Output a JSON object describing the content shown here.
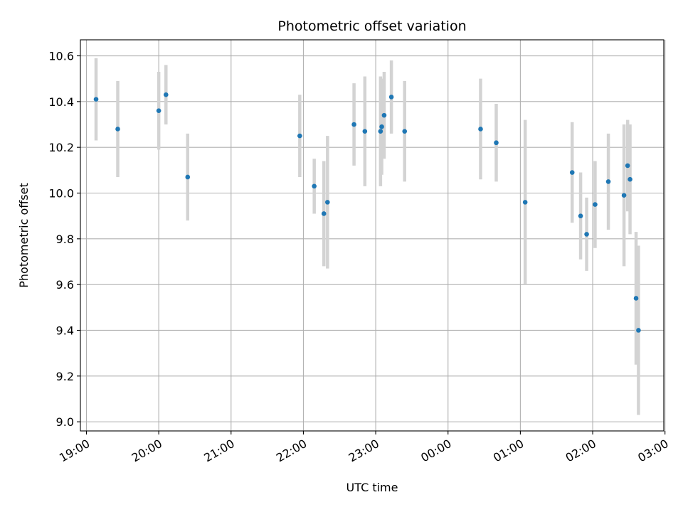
{
  "chart_data": {
    "type": "scatter",
    "title": "Photometric offset variation",
    "xlabel": "UTC time",
    "ylabel": "Photometric offset",
    "x_axis": "time",
    "x_start": "2024-01-01T19:00",
    "xlim": [
      "2024-01-01T18:55",
      "2024-01-02T02:59"
    ],
    "ylim": [
      8.96,
      10.67
    ],
    "x_ticks": [
      {
        "t": "2024-01-01T19:00",
        "label": "19:00"
      },
      {
        "t": "2024-01-01T20:00",
        "label": "20:00"
      },
      {
        "t": "2024-01-01T21:00",
        "label": "21:00"
      },
      {
        "t": "2024-01-01T22:00",
        "label": "22:00"
      },
      {
        "t": "2024-01-01T23:00",
        "label": "23:00"
      },
      {
        "t": "2024-01-02T00:00",
        "label": "00:00"
      },
      {
        "t": "2024-01-02T01:00",
        "label": "01:00"
      },
      {
        "t": "2024-01-02T02:00",
        "label": "02:00"
      },
      {
        "t": "2024-01-02T03:00",
        "label": "03:00"
      }
    ],
    "y_ticks": [
      {
        "v": 9.0,
        "label": "9.0"
      },
      {
        "v": 9.2,
        "label": "9.2"
      },
      {
        "v": 9.4,
        "label": "9.4"
      },
      {
        "v": 9.6,
        "label": "9.6"
      },
      {
        "v": 9.8,
        "label": "9.8"
      },
      {
        "v": 10.0,
        "label": "10.0"
      },
      {
        "v": 10.2,
        "label": "10.2"
      },
      {
        "v": 10.4,
        "label": "10.4"
      },
      {
        "v": 10.6,
        "label": "10.6"
      }
    ],
    "grid": true,
    "point_color": "#1f77b4",
    "errorbar_color": "#d3d3d3",
    "points": [
      {
        "t": "2024-01-01T19:08",
        "y": 10.41,
        "err": 0.18
      },
      {
        "t": "2024-01-01T19:26",
        "y": 10.28,
        "err": 0.21
      },
      {
        "t": "2024-01-01T20:00",
        "y": 10.36,
        "err": 0.17
      },
      {
        "t": "2024-01-01T20:06",
        "y": 10.43,
        "err": 0.13
      },
      {
        "t": "2024-01-01T20:24",
        "y": 10.07,
        "err": 0.19
      },
      {
        "t": "2024-01-01T21:57",
        "y": 10.25,
        "err": 0.18
      },
      {
        "t": "2024-01-01T22:09",
        "y": 10.03,
        "err": 0.12
      },
      {
        "t": "2024-01-01T22:17",
        "y": 9.91,
        "err": 0.23
      },
      {
        "t": "2024-01-01T22:20",
        "y": 9.96,
        "err": 0.29
      },
      {
        "t": "2024-01-01T22:42",
        "y": 10.3,
        "err": 0.18
      },
      {
        "t": "2024-01-01T22:51",
        "y": 10.27,
        "err": 0.24
      },
      {
        "t": "2024-01-01T23:04",
        "y": 10.27,
        "err": 0.24
      },
      {
        "t": "2024-01-01T23:05",
        "y": 10.29,
        "err": 0.21
      },
      {
        "t": "2024-01-01T23:07",
        "y": 10.34,
        "err": 0.19
      },
      {
        "t": "2024-01-01T23:13",
        "y": 10.42,
        "err": 0.16
      },
      {
        "t": "2024-01-01T23:24",
        "y": 10.27,
        "err": 0.22
      },
      {
        "t": "2024-01-02T00:27",
        "y": 10.28,
        "err": 0.22
      },
      {
        "t": "2024-01-02T00:40",
        "y": 10.22,
        "err": 0.17
      },
      {
        "t": "2024-01-02T01:04",
        "y": 9.96,
        "err": 0.36
      },
      {
        "t": "2024-01-02T01:43",
        "y": 10.09,
        "err": 0.22
      },
      {
        "t": "2024-01-02T01:50",
        "y": 9.9,
        "err": 0.19
      },
      {
        "t": "2024-01-02T01:55",
        "y": 9.82,
        "err": 0.16
      },
      {
        "t": "2024-01-02T02:02",
        "y": 9.95,
        "err": 0.19
      },
      {
        "t": "2024-01-02T02:13",
        "y": 10.05,
        "err": 0.21
      },
      {
        "t": "2024-01-02T02:26",
        "y": 9.99,
        "err": 0.31
      },
      {
        "t": "2024-01-02T02:29",
        "y": 10.12,
        "err": 0.2
      },
      {
        "t": "2024-01-02T02:31",
        "y": 10.06,
        "err": 0.24
      },
      {
        "t": "2024-01-02T02:36",
        "y": 9.54,
        "err": 0.29
      },
      {
        "t": "2024-01-02T02:38",
        "y": 9.4,
        "err": 0.37
      }
    ]
  }
}
